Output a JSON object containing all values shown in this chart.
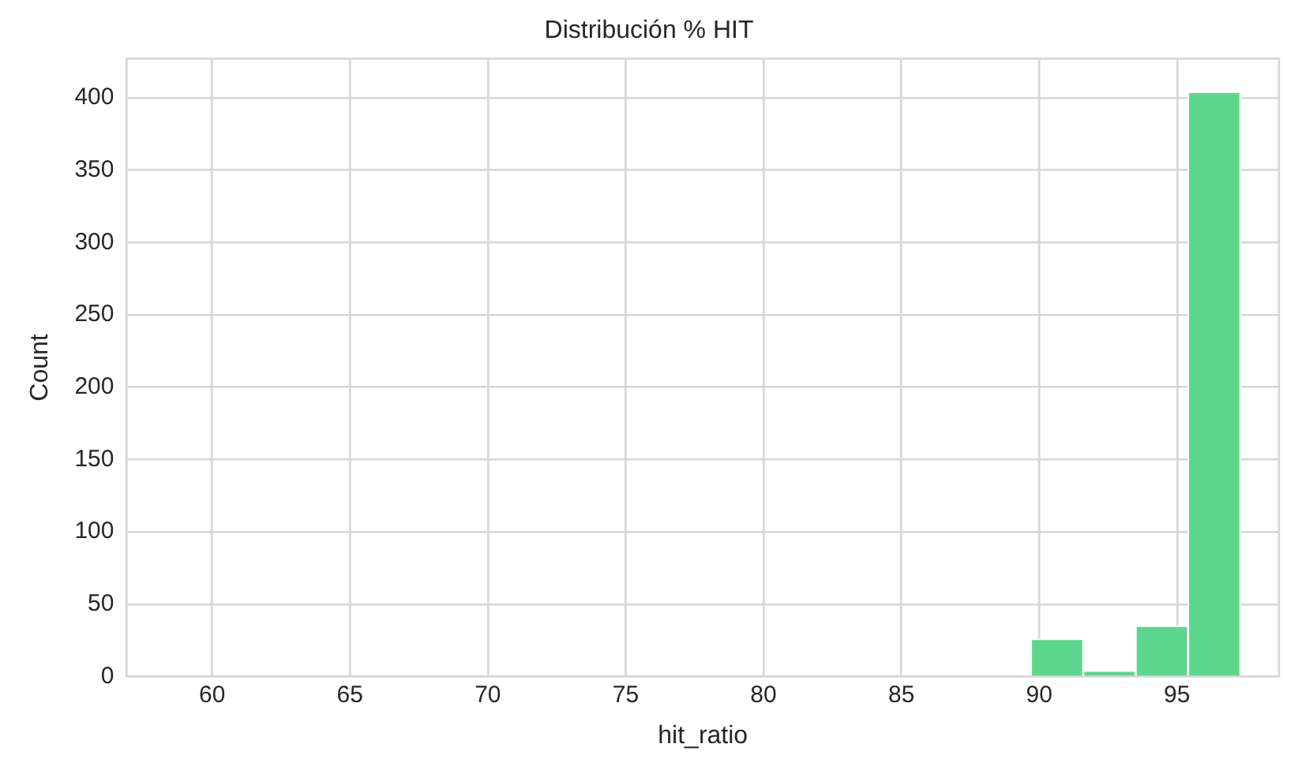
{
  "chart_data": {
    "type": "histogram",
    "title": "Distribución % HIT",
    "xlabel": "hit_ratio",
    "ylabel": "Count",
    "bins": [
      89.7,
      91.6,
      93.5,
      95.4,
      97.3
    ],
    "values": [
      26,
      4,
      35,
      404
    ],
    "color": "#5dd68d",
    "xlim": [
      56.9,
      98.7
    ],
    "xticks": [
      60,
      65,
      70,
      75,
      80,
      85,
      90,
      95
    ],
    "ylim": [
      0,
      427
    ],
    "yticks": [
      0,
      50,
      100,
      150,
      200,
      250,
      300,
      350,
      400
    ],
    "grid": true
  }
}
